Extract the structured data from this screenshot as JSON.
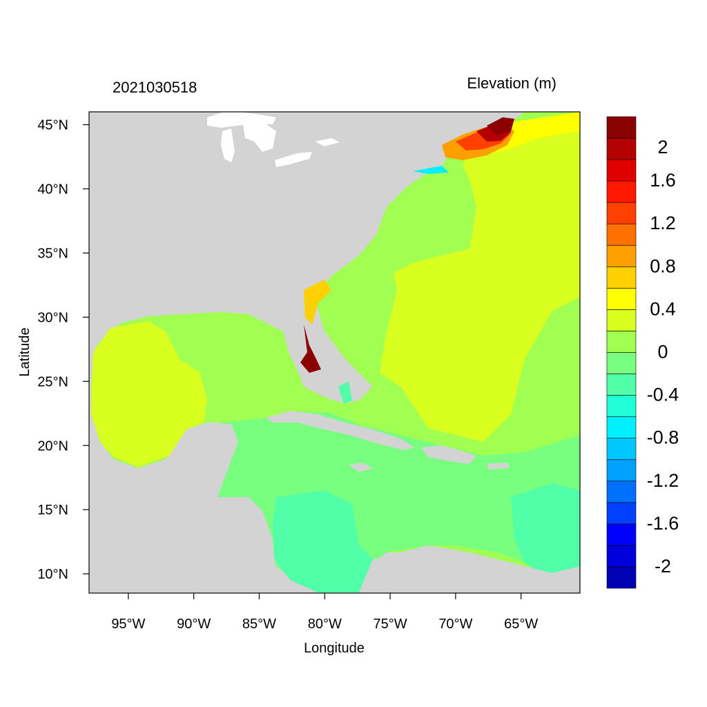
{
  "figure": {
    "left_title": "2021030518",
    "right_title": "Elevation (m)",
    "xlabel": "Longitude",
    "ylabel": "Latitude"
  },
  "axes": {
    "lon_range": [
      -98.0,
      -60.5
    ],
    "lat_range": [
      8.5,
      46.0
    ],
    "x_ticks": [
      {
        "value": -95,
        "label": "95°W"
      },
      {
        "value": -90,
        "label": "90°W"
      },
      {
        "value": -85,
        "label": "85°W"
      },
      {
        "value": -80,
        "label": "80°W"
      },
      {
        "value": -75,
        "label": "75°W"
      },
      {
        "value": -70,
        "label": "70°W"
      },
      {
        "value": -65,
        "label": "65°W"
      }
    ],
    "y_ticks": [
      {
        "value": 45,
        "label": "45°N"
      },
      {
        "value": 40,
        "label": "40°N"
      },
      {
        "value": 35,
        "label": "35°N"
      },
      {
        "value": 30,
        "label": "30°N"
      },
      {
        "value": 25,
        "label": "25°N"
      },
      {
        "value": 20,
        "label": "20°N"
      },
      {
        "value": 15,
        "label": "15°N"
      },
      {
        "value": 10,
        "label": "10°N"
      }
    ]
  },
  "colors": {
    "land": "#d3d3d3",
    "lakes": "#ffffff",
    "frame": "#000000"
  },
  "colorbar": {
    "levels": [
      -2.2,
      -2.0,
      -1.8,
      -1.6,
      -1.4,
      -1.2,
      -1.0,
      -0.8,
      -0.6,
      -0.4,
      -0.2,
      0.0,
      0.2,
      0.4,
      0.6,
      0.8,
      1.0,
      1.2,
      1.4,
      1.6,
      1.8,
      2.0,
      2.2
    ],
    "colors": [
      "#0000b4",
      "#0000dc",
      "#0000ff",
      "#0040ff",
      "#0070ff",
      "#00a0ff",
      "#00c8ff",
      "#00f0ff",
      "#20ffd8",
      "#50ffa8",
      "#78ff80",
      "#a0ff50",
      "#d8ff20",
      "#ffff00",
      "#ffd000",
      "#ffa000",
      "#ff7000",
      "#ff4000",
      "#ff1800",
      "#e00000",
      "#b40000",
      "#8b0000"
    ],
    "labels": [
      {
        "value": 2.0,
        "label": "2"
      },
      {
        "value": 1.6,
        "label": "1.6"
      },
      {
        "value": 1.2,
        "label": "1.2"
      },
      {
        "value": 0.8,
        "label": "0.8"
      },
      {
        "value": 0.4,
        "label": "0.4"
      },
      {
        "value": 0.0,
        "label": "0"
      },
      {
        "value": -0.4,
        "label": "-0.4"
      },
      {
        "value": -0.8,
        "label": "-0.8"
      },
      {
        "value": -1.2,
        "label": "-1.2"
      },
      {
        "value": -1.6,
        "label": "-1.6"
      },
      {
        "value": -2.0,
        "label": "-2"
      }
    ]
  }
}
